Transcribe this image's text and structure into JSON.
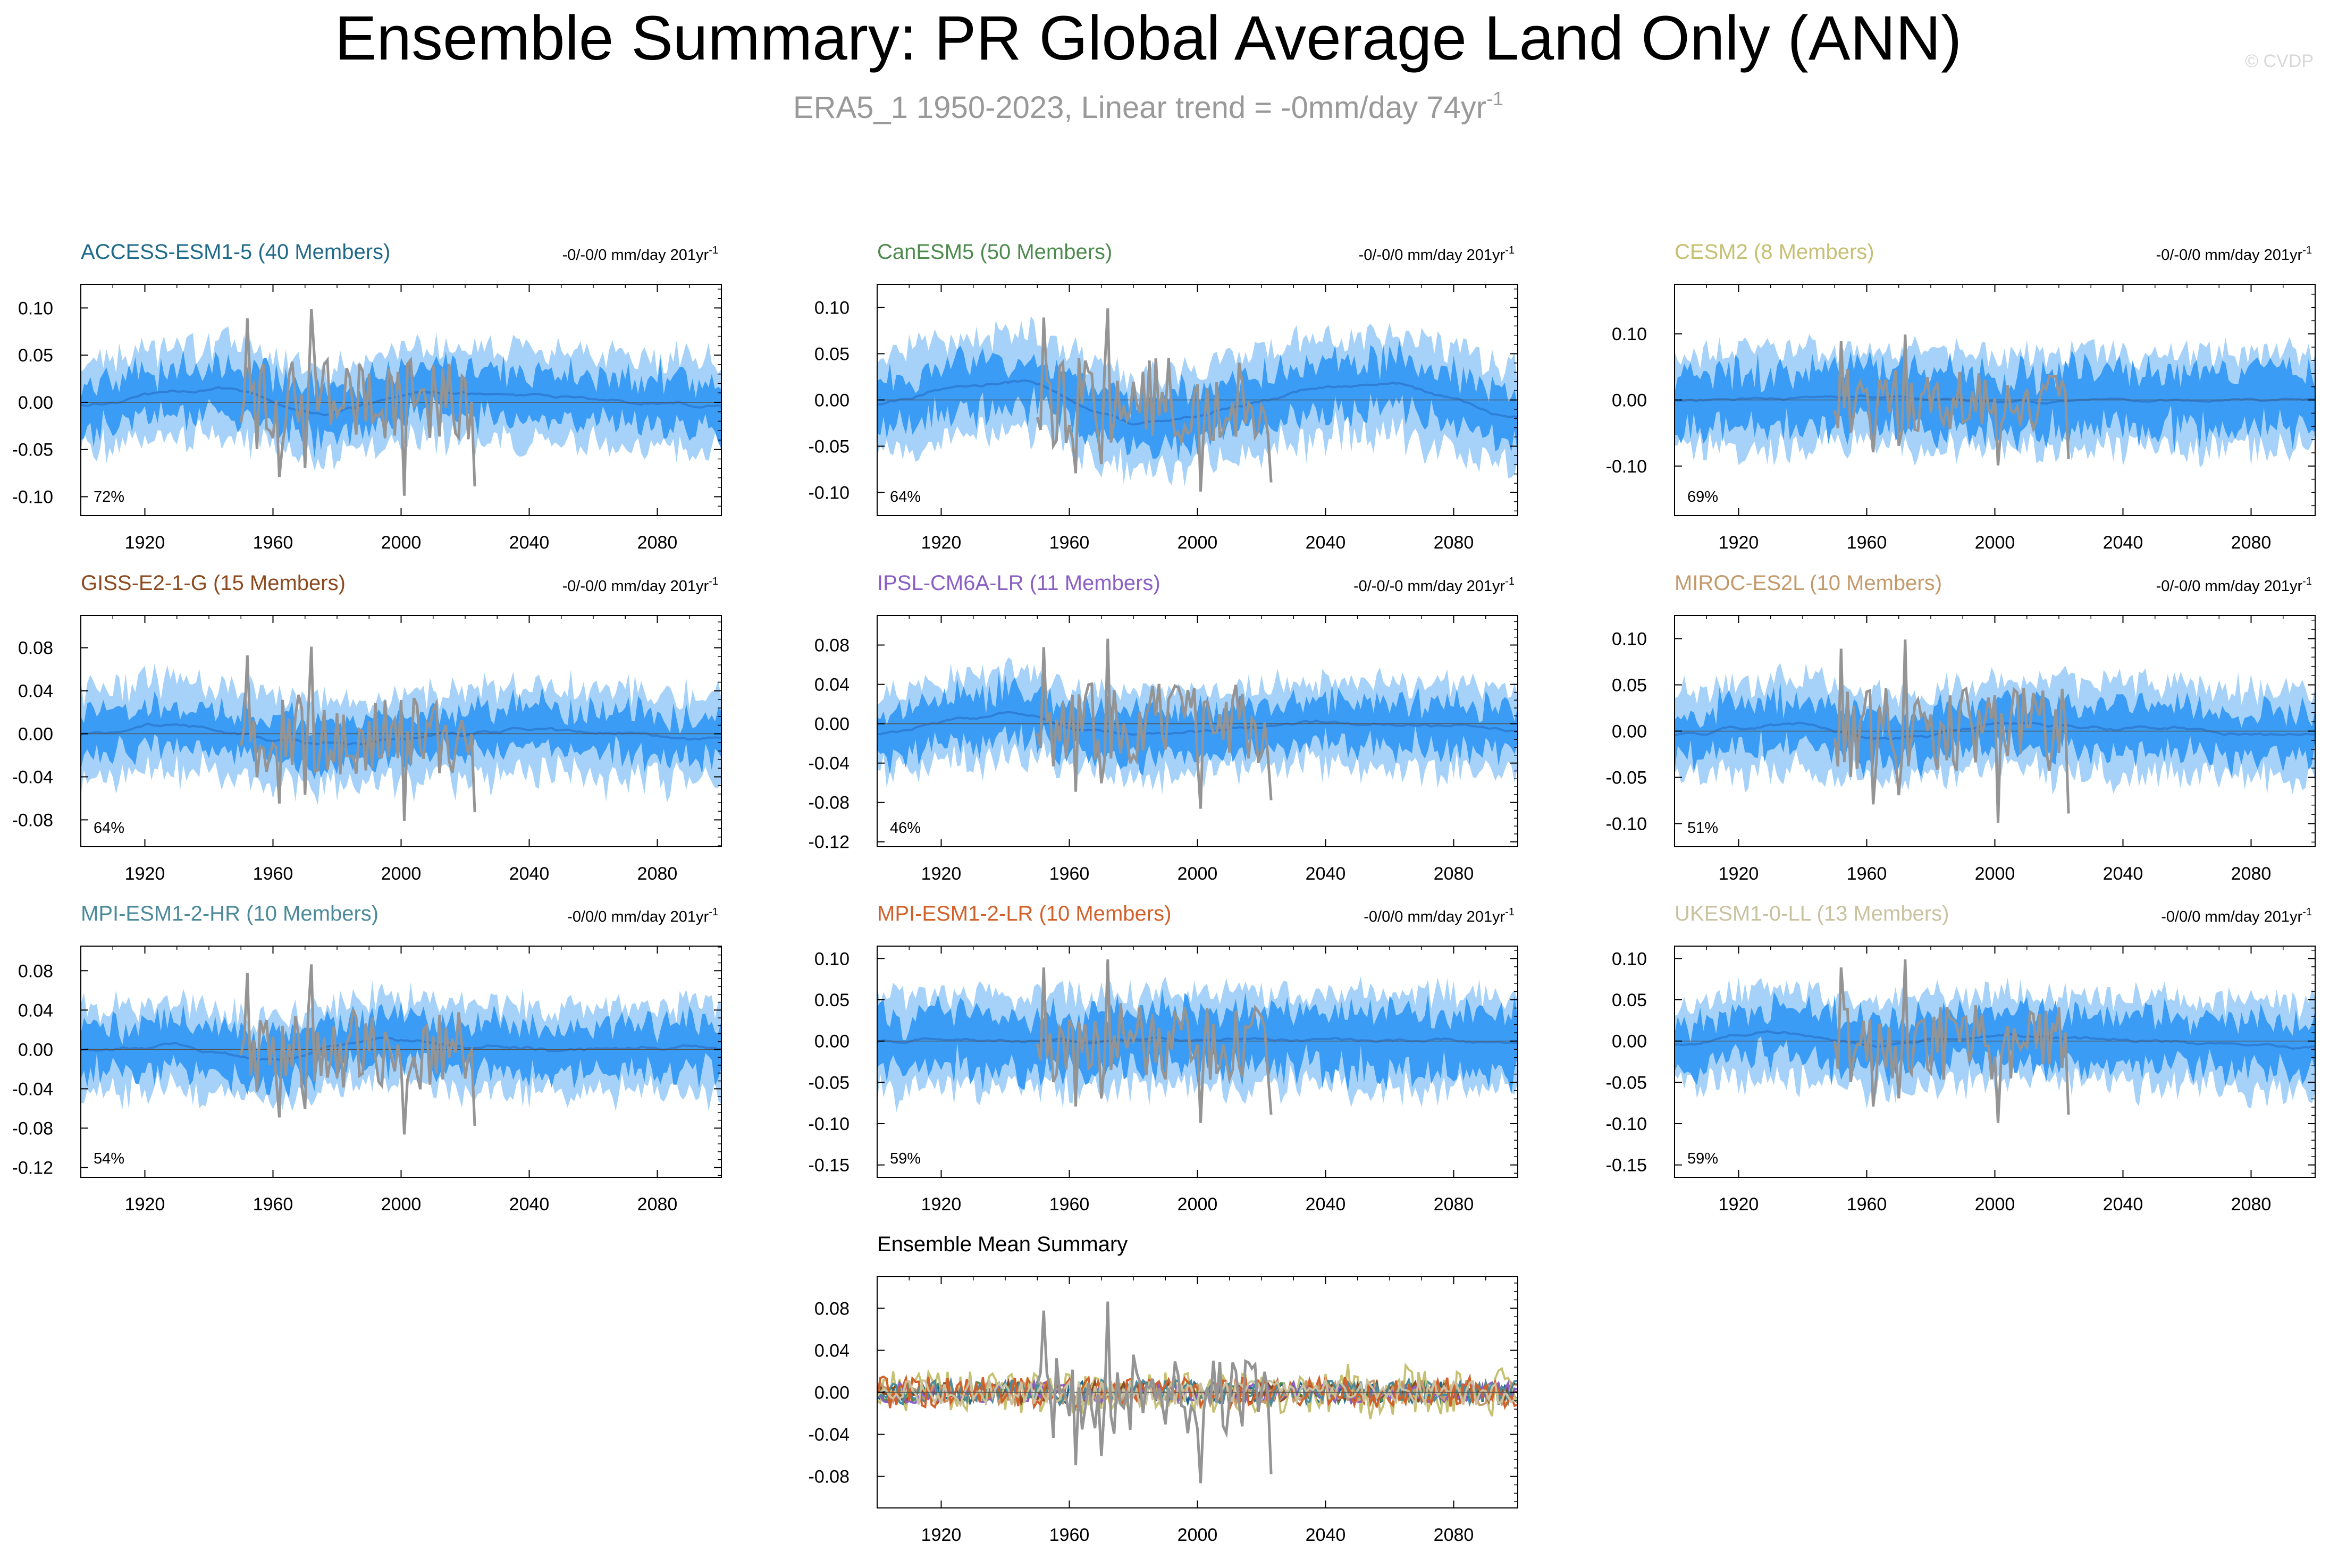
{
  "title": "Ensemble Summary: PR Global Average Land Only (ANN)",
  "subtitle": {
    "text": "ERA5_1 1950-2023, Linear trend = -0mm/day 74yr",
    "superscript": "-1",
    "color": "#999999"
  },
  "watermark": "© CVDP",
  "colors": {
    "spread_outer": "#a6d2fa",
    "spread_inner": "#3a9cf5",
    "ensemble_mean_line": "#2f7fd6",
    "observations": "#949494",
    "zero_line": "#555555"
  },
  "chart_data": [
    {
      "type": "area",
      "model": "ACCESS-ESM1-5",
      "title": "ACCESS-ESM1-5 (40 Members)",
      "title_color": "#1f6a8a",
      "trend_label": "-0/-0/0 mm/day 201yr",
      "trend_superscript": "-1",
      "percent_label": "72%",
      "xlim": [
        1900,
        2100
      ],
      "xticks": [
        "1920",
        "1960",
        "2000",
        "2040",
        "2080"
      ],
      "ylim": [
        -0.12,
        0.125
      ],
      "yticks": [
        "0.10",
        "0.05",
        "0.00",
        "-0.05",
        "-0.10"
      ],
      "ytick_values": [
        0.1,
        0.05,
        0.0,
        -0.05,
        -0.1
      ],
      "outer_spread": 0.05,
      "inner_spread": 0.026,
      "mean_curve": [
        [
          1900,
          -0.005
        ],
        [
          1920,
          0.008
        ],
        [
          1945,
          0.015
        ],
        [
          1960,
          0.0
        ],
        [
          1975,
          -0.015
        ],
        [
          2000,
          0.008
        ],
        [
          2040,
          0.008
        ],
        [
          2100,
          -0.005
        ]
      ],
      "obs_range": [
        1950,
        2023
      ],
      "obs_amplitude": 0.055,
      "seed": 11
    },
    {
      "type": "area",
      "model": "CanESM5",
      "title": "CanESM5 (50 Members)",
      "title_color": "#4d8a4d",
      "trend_label": "-0/-0/0 mm/day 201yr",
      "trend_superscript": "-1",
      "percent_label": "64%",
      "xlim": [
        1900,
        2100
      ],
      "xticks": [
        "1920",
        "1960",
        "2000",
        "2040",
        "2080"
      ],
      "ylim": [
        -0.125,
        0.125
      ],
      "yticks": [
        "0.10",
        "0.05",
        "0.00",
        "-0.05",
        "-0.10"
      ],
      "ytick_values": [
        0.1,
        0.05,
        0.0,
        -0.05,
        -0.1
      ],
      "outer_spread": 0.055,
      "inner_spread": 0.028,
      "mean_curve": [
        [
          1900,
          -0.005
        ],
        [
          1920,
          0.012
        ],
        [
          1945,
          0.022
        ],
        [
          1960,
          0.0
        ],
        [
          1980,
          -0.025
        ],
        [
          2000,
          -0.018
        ],
        [
          2040,
          0.015
        ],
        [
          2060,
          0.02
        ],
        [
          2100,
          -0.02
        ]
      ],
      "obs_range": [
        1950,
        2023
      ],
      "obs_amplitude": 0.055,
      "seed": 23
    },
    {
      "type": "area",
      "model": "CESM2",
      "title": "CESM2 (8 Members)",
      "title_color": "#c6c073",
      "trend_label": "-0/-0/0 mm/day 201yr",
      "trend_superscript": "-1",
      "percent_label": "69%",
      "xlim": [
        1900,
        2100
      ],
      "xticks": [
        "1920",
        "1960",
        "2000",
        "2040",
        "2080"
      ],
      "ylim": [
        -0.175,
        0.175
      ],
      "yticks": [
        "0.10",
        "0.00",
        "-0.10"
      ],
      "ytick_values": [
        0.1,
        0.0,
        -0.1
      ],
      "outer_spread": 0.075,
      "inner_spread": 0.045,
      "mean_curve": [
        [
          1900,
          0.0
        ],
        [
          1960,
          0.005
        ],
        [
          2000,
          -0.003
        ],
        [
          2100,
          0.0
        ]
      ],
      "obs_range": [
        1950,
        2023
      ],
      "obs_amplitude": 0.055,
      "seed": 37
    },
    {
      "type": "area",
      "model": "GISS-E2-1-G",
      "title": "GISS-E2-1-G (15 Members)",
      "title_color": "#8c4a1f",
      "trend_label": "-0/-0/0 mm/day 201yr",
      "trend_superscript": "-1",
      "percent_label": "64%",
      "xlim": [
        1900,
        2100
      ],
      "xticks": [
        "1920",
        "1960",
        "2000",
        "2040",
        "2080"
      ],
      "ylim": [
        -0.105,
        0.11
      ],
      "yticks": [
        "0.08",
        "0.04",
        "0.00",
        "-0.04",
        "-0.08"
      ],
      "ytick_values": [
        0.08,
        0.04,
        0.0,
        -0.04,
        -0.08
      ],
      "outer_spread": 0.042,
      "inner_spread": 0.02,
      "mean_curve": [
        [
          1900,
          0.0
        ],
        [
          1930,
          0.01
        ],
        [
          1960,
          -0.005
        ],
        [
          1980,
          -0.01
        ],
        [
          2040,
          0.005
        ],
        [
          2100,
          -0.005
        ]
      ],
      "obs_range": [
        1950,
        2023
      ],
      "obs_amplitude": 0.045,
      "seed": 41
    },
    {
      "type": "area",
      "model": "IPSL-CM6A-LR",
      "title": "IPSL-CM6A-LR (11 Members)",
      "title_color": "#8a5ec4",
      "trend_label": "-0/-0/-0 mm/day 201yr",
      "trend_superscript": "-1",
      "percent_label": "46%",
      "xlim": [
        1900,
        2100
      ],
      "xticks": [
        "1920",
        "1960",
        "2000",
        "2040",
        "2080"
      ],
      "ylim": [
        -0.125,
        0.11
      ],
      "yticks": [
        "0.08",
        "0.04",
        "0.00",
        "-0.04",
        "-0.08",
        "-0.12"
      ],
      "ytick_values": [
        0.08,
        0.04,
        0.0,
        -0.04,
        -0.08,
        -0.12
      ],
      "outer_spread": 0.045,
      "inner_spread": 0.024,
      "mean_curve": [
        [
          1900,
          -0.01
        ],
        [
          1925,
          0.005
        ],
        [
          1945,
          0.012
        ],
        [
          1960,
          -0.005
        ],
        [
          1980,
          -0.012
        ],
        [
          2040,
          0.002
        ],
        [
          2100,
          -0.005
        ]
      ],
      "obs_range": [
        1950,
        2023
      ],
      "obs_amplitude": 0.048,
      "seed": 53
    },
    {
      "type": "area",
      "model": "MIROC-ES2L",
      "title": "MIROC-ES2L (10 Members)",
      "title_color": "#c49a6c",
      "trend_label": "-0/-0/0 mm/day 201yr",
      "trend_superscript": "-1",
      "percent_label": "51%",
      "xlim": [
        1900,
        2100
      ],
      "xticks": [
        "1920",
        "1960",
        "2000",
        "2040",
        "2080"
      ],
      "ylim": [
        -0.125,
        0.125
      ],
      "yticks": [
        "0.10",
        "0.05",
        "0.00",
        "-0.05",
        "-0.10"
      ],
      "ytick_values": [
        0.1,
        0.05,
        0.0,
        -0.05,
        -0.1
      ],
      "outer_spread": 0.05,
      "inner_spread": 0.026,
      "mean_curve": [
        [
          1900,
          -0.005
        ],
        [
          1940,
          0.01
        ],
        [
          1965,
          -0.01
        ],
        [
          2000,
          0.008
        ],
        [
          2100,
          -0.005
        ]
      ],
      "obs_range": [
        1950,
        2023
      ],
      "obs_amplitude": 0.055,
      "seed": 67
    },
    {
      "type": "area",
      "model": "MPI-ESM1-2-HR",
      "title": "MPI-ESM1-2-HR (10 Members)",
      "title_color": "#4a8a9a",
      "trend_label": "-0/0/0 mm/day 201yr",
      "trend_superscript": "-1",
      "percent_label": "54%",
      "xlim": [
        1900,
        2100
      ],
      "xticks": [
        "1920",
        "1960",
        "2000",
        "2040",
        "2080"
      ],
      "ylim": [
        -0.13,
        0.105
      ],
      "yticks": [
        "0.08",
        "0.04",
        "0.00",
        "-0.04",
        "-0.08",
        "-0.12"
      ],
      "ytick_values": [
        0.08,
        0.04,
        0.0,
        -0.04,
        -0.08,
        -0.12
      ],
      "outer_spread": 0.045,
      "inner_spread": 0.025,
      "mean_curve": [
        [
          1900,
          0.0
        ],
        [
          1930,
          0.005
        ],
        [
          1960,
          -0.012
        ],
        [
          1990,
          0.01
        ],
        [
          2040,
          0.0
        ],
        [
          2100,
          0.002
        ]
      ],
      "obs_range": [
        1950,
        2023
      ],
      "obs_amplitude": 0.048,
      "seed": 71
    },
    {
      "type": "area",
      "model": "MPI-ESM1-2-LR",
      "title": "MPI-ESM1-2-LR (10 Members)",
      "title_color": "#d2602a",
      "trend_label": "-0/0/0 mm/day 201yr",
      "trend_superscript": "-1",
      "percent_label": "59%",
      "xlim": [
        1900,
        2100
      ],
      "xticks": [
        "1920",
        "1960",
        "2000",
        "2040",
        "2080"
      ],
      "ylim": [
        -0.165,
        0.115
      ],
      "yticks": [
        "0.10",
        "0.05",
        "0.00",
        "-0.05",
        "-0.10",
        "-0.15"
      ],
      "ytick_values": [
        0.1,
        0.05,
        0.0,
        -0.05,
        -0.1,
        -0.15
      ],
      "outer_spread": 0.06,
      "inner_spread": 0.035,
      "mean_curve": [
        [
          1900,
          0.0
        ],
        [
          2000,
          0.002
        ],
        [
          2100,
          0.0
        ]
      ],
      "obs_range": [
        1950,
        2023
      ],
      "obs_amplitude": 0.055,
      "seed": 83
    },
    {
      "type": "area",
      "model": "UKESM1-0-LL",
      "title": "UKESM1-0-LL (13 Members)",
      "title_color": "#c9c2a0",
      "trend_label": "-0/0/0 mm/day 201yr",
      "trend_superscript": "-1",
      "percent_label": "59%",
      "xlim": [
        1900,
        2100
      ],
      "xticks": [
        "1920",
        "1960",
        "2000",
        "2040",
        "2080"
      ],
      "ylim": [
        -0.165,
        0.115
      ],
      "yticks": [
        "0.10",
        "0.05",
        "0.00",
        "-0.05",
        "-0.10",
        "-0.15"
      ],
      "ytick_values": [
        0.1,
        0.05,
        0.0,
        -0.05,
        -0.1,
        -0.15
      ],
      "outer_spread": 0.055,
      "inner_spread": 0.03,
      "mean_curve": [
        [
          1900,
          -0.005
        ],
        [
          1935,
          0.012
        ],
        [
          1960,
          -0.008
        ],
        [
          2000,
          0.008
        ],
        [
          2100,
          -0.008
        ]
      ],
      "obs_range": [
        1950,
        2023
      ],
      "obs_amplitude": 0.055,
      "seed": 97
    },
    {
      "type": "line",
      "model": "Ensemble Mean",
      "title": "Ensemble Mean Summary",
      "title_color": "#000000",
      "xlim": [
        1900,
        2100
      ],
      "xticks": [
        "1920",
        "1960",
        "2000",
        "2040",
        "2080"
      ],
      "ylim": [
        -0.11,
        0.11
      ],
      "yticks": [
        "0.08",
        "0.04",
        "0.00",
        "-0.04",
        "-0.08"
      ],
      "ytick_values": [
        0.08,
        0.04,
        0.0,
        -0.04,
        -0.08
      ],
      "series": [
        {
          "name": "ACCESS-ESM1-5",
          "color": "#1f6a8a",
          "amplitude": 0.01
        },
        {
          "name": "CanESM5",
          "color": "#4d8a4d",
          "amplitude": 0.01
        },
        {
          "name": "CESM2",
          "color": "#c6c073",
          "amplitude": 0.02
        },
        {
          "name": "GISS-E2-1-G",
          "color": "#8c4a1f",
          "amplitude": 0.01
        },
        {
          "name": "IPSL-CM6A-LR",
          "color": "#8a5ec4",
          "amplitude": 0.01
        },
        {
          "name": "MIROC-ES2L",
          "color": "#c49a6c",
          "amplitude": 0.012
        },
        {
          "name": "MPI-ESM1-2-HR",
          "color": "#4a8a9a",
          "amplitude": 0.012
        },
        {
          "name": "MPI-ESM1-2-LR",
          "color": "#d2602a",
          "amplitude": 0.015
        },
        {
          "name": "UKESM1-0-LL",
          "color": "#c9c2a0",
          "amplitude": 0.012
        }
      ],
      "obs_range": [
        1950,
        2023
      ],
      "obs_amplitude": 0.048,
      "seed": 131
    }
  ]
}
